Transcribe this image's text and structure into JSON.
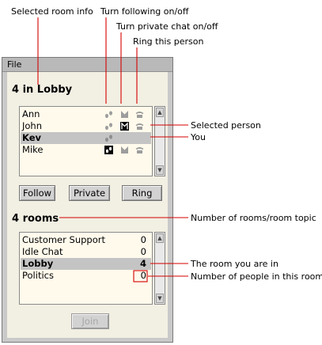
{
  "annotations": {
    "selected_room_info": "Selected room info",
    "turn_following": "Turn following on/off",
    "turn_private_chat": "Turn private chat on/off",
    "ring_person": "Ring this person",
    "selected_person": "Selected person",
    "you": "You",
    "number_of_rooms": "Number of rooms/room topic",
    "room_you_are_in": "The room you are in",
    "people_in_room": "Number of people in this room"
  },
  "menu": {
    "file": "File"
  },
  "people_panel": {
    "heading": "4 in Lobby",
    "people": [
      {
        "name": "Ann",
        "selected": false,
        "bold": false,
        "follow": "off",
        "private": "off",
        "ring": "off"
      },
      {
        "name": "John",
        "selected": false,
        "bold": false,
        "follow": "off",
        "private": "on",
        "ring": "off"
      },
      {
        "name": "Kev",
        "selected": true,
        "bold": true,
        "follow": "off",
        "private": "none",
        "ring": "none"
      },
      {
        "name": "Mike",
        "selected": false,
        "bold": false,
        "follow": "on",
        "private": "off",
        "ring": "off"
      }
    ]
  },
  "buttons": {
    "follow": "Follow",
    "private": "Private",
    "ring": "Ring",
    "join": "Join"
  },
  "rooms_panel": {
    "heading": "4 rooms",
    "rooms": [
      {
        "name": "Customer Support",
        "count": "0",
        "selected": false,
        "bold": false
      },
      {
        "name": "Idle Chat",
        "count": "0",
        "selected": false,
        "bold": false
      },
      {
        "name": "Lobby",
        "count": "4",
        "selected": true,
        "bold": true
      },
      {
        "name": "Politics",
        "count": "0",
        "selected": false,
        "bold": false
      }
    ]
  },
  "colors": {
    "annotation_line": "#d40000",
    "panel_bg": "#f2efe3",
    "list_bg": "#fffaec",
    "selection": "#c4c4c4"
  },
  "icons": {
    "follow": "footprints-icon",
    "private": "private-chat-icon",
    "ring": "telephone-icon"
  }
}
